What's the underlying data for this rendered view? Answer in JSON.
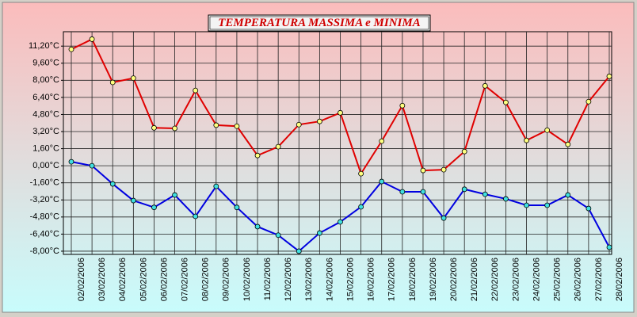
{
  "chart_data": {
    "type": "line",
    "title": "TEMPERATURA MASSIMA e MINIMA",
    "categories": [
      "02/02/2006",
      "03/02/2006",
      "04/02/2006",
      "05/02/2006",
      "06/02/2006",
      "07/02/2006",
      "08/02/2006",
      "09/02/2006",
      "10/02/2006",
      "11/02/2006",
      "12/02/2006",
      "13/02/2006",
      "14/02/2006",
      "15/02/2006",
      "16/02/2006",
      "17/02/2006",
      "18/02/2006",
      "19/02/2006",
      "20/02/2006",
      "21/02/2006",
      "22/02/2006",
      "23/02/2006",
      "24/02/2006",
      "25/02/2006",
      "26/02/2006",
      "27/02/2006",
      "28/02/2006"
    ],
    "series": [
      {
        "color": "#e00000",
        "marker_color": "#ffff80",
        "values": [
          10.9,
          11.85,
          7.8,
          8.2,
          3.55,
          3.5,
          7.05,
          3.8,
          3.7,
          0.96,
          1.78,
          3.85,
          4.15,
          4.96,
          -0.74,
          2.3,
          5.63,
          -0.44,
          -0.37,
          1.33,
          7.48,
          5.93,
          2.37,
          3.33,
          2.0,
          6.0,
          8.37
        ]
      },
      {
        "color": "#0000e0",
        "marker_color": "#40e0e0",
        "values": [
          0.37,
          0.0,
          -1.7,
          -3.26,
          -3.9,
          -2.74,
          -4.74,
          -1.93,
          -3.9,
          -5.7,
          -6.5,
          -8.0,
          -6.3,
          -5.26,
          -3.85,
          -1.48,
          -2.44,
          -2.44,
          -4.9,
          -2.2,
          -2.67,
          -3.1,
          -3.7,
          -3.7,
          -2.74,
          -4.0,
          -7.63
        ]
      }
    ],
    "ylim": [
      -8.3,
      12.55
    ],
    "yticks": [
      {
        "value": 11.2,
        "label": "11,20°C"
      },
      {
        "value": 9.6,
        "label": "9,60°C"
      },
      {
        "value": 8.0,
        "label": "8,00°C"
      },
      {
        "value": 6.4,
        "label": "6,40°C"
      },
      {
        "value": 4.8,
        "label": "4,80°C"
      },
      {
        "value": 3.2,
        "label": "3,20°C"
      },
      {
        "value": 1.6,
        "label": "1,60°C"
      },
      {
        "value": 0,
        "label": "0,00°C"
      },
      {
        "value": -1.6,
        "label": "-1,60°C"
      },
      {
        "value": -3.2,
        "label": "-3,20°C"
      },
      {
        "value": -4.8,
        "label": "-4,80°C"
      },
      {
        "value": -6.4,
        "label": "-6,40°C"
      },
      {
        "value": -8.0,
        "label": "-8,00°C"
      }
    ],
    "grid": true
  }
}
